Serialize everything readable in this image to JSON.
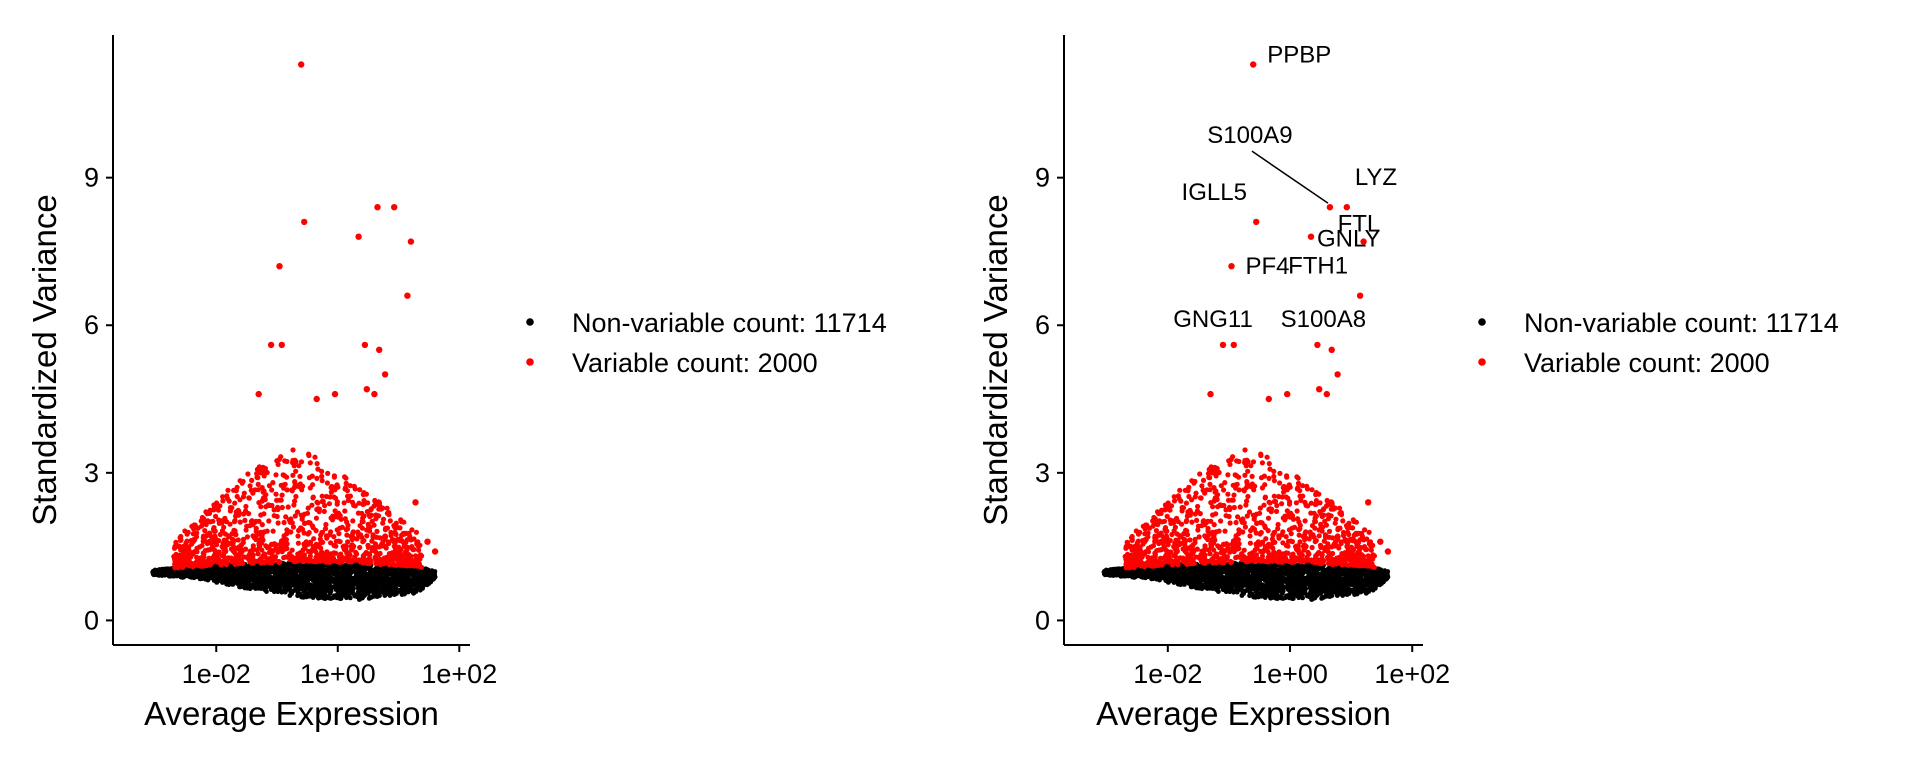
{
  "colors": {
    "variable": "#ff0000",
    "non_variable": "#000000",
    "axis": "#000000",
    "background": "#ffffff"
  },
  "chart_data": [
    {
      "type": "scatter",
      "title": "",
      "xlabel": "Average Expression",
      "ylabel": "Standardized Variance",
      "xscale": "log10",
      "xlim": [
        0.0002,
        150
      ],
      "ylim": [
        -0.5,
        11.9
      ],
      "xticks": [
        0.01,
        1,
        100
      ],
      "xtick_labels": [
        "1e-02",
        "1e+00",
        "1e+02"
      ],
      "yticks": [
        0,
        3,
        6,
        9
      ],
      "ytick_labels": [
        "0",
        "3",
        "6",
        "9"
      ],
      "grid": false,
      "legend_position": "right",
      "series": [
        {
          "name": "Non-variable count: 11714",
          "color": "#000000",
          "count": 11714,
          "points_shown_as_band": true,
          "band_upper": [
            [
              0.0005,
              1.0
            ],
            [
              0.005,
              1.1
            ],
            [
              0.03,
              1.15
            ],
            [
              0.3,
              1.2
            ],
            [
              3,
              1.15
            ],
            [
              20,
              1.1
            ],
            [
              40,
              1.0
            ]
          ],
          "band_lower": [
            [
              0.0005,
              0.95
            ],
            [
              0.005,
              0.85
            ],
            [
              0.03,
              0.65
            ],
            [
              0.3,
              0.45
            ],
            [
              3,
              0.42
            ],
            [
              20,
              0.55
            ],
            [
              40,
              0.85
            ]
          ]
        },
        {
          "name": "Variable count: 2000",
          "color": "#ff0000",
          "count": 2000,
          "notable_points": [
            {
              "x": 0.25,
              "y": 11.3
            },
            {
              "x": 0.28,
              "y": 8.1
            },
            {
              "x": 4.5,
              "y": 8.4
            },
            {
              "x": 8.5,
              "y": 8.4
            },
            {
              "x": 2.2,
              "y": 7.8
            },
            {
              "x": 16,
              "y": 7.7
            },
            {
              "x": 0.11,
              "y": 7.2
            },
            {
              "x": 14,
              "y": 6.6
            },
            {
              "x": 0.08,
              "y": 5.6
            },
            {
              "x": 0.12,
              "y": 5.6
            },
            {
              "x": 2.8,
              "y": 5.6
            },
            {
              "x": 4.8,
              "y": 5.5
            },
            {
              "x": 6.0,
              "y": 5.0
            },
            {
              "x": 0.9,
              "y": 4.6
            },
            {
              "x": 3.0,
              "y": 4.7
            },
            {
              "x": 4.0,
              "y": 4.6
            },
            {
              "x": 0.45,
              "y": 4.5
            },
            {
              "x": 0.05,
              "y": 4.6
            },
            {
              "x": 19,
              "y": 2.4
            },
            {
              "x": 30,
              "y": 1.6
            },
            {
              "x": 40,
              "y": 1.4
            }
          ],
          "cloud_region": {
            "x_range": [
              0.002,
              25
            ],
            "y_center_at_x": [
              [
                0.002,
                1.4
              ],
              [
                0.02,
                1.8
              ],
              [
                0.2,
                2.0
              ],
              [
                2,
                1.7
              ],
              [
                20,
                1.4
              ]
            ],
            "y_max_at_x": [
              [
                0.002,
                1.6
              ],
              [
                0.02,
                2.8
              ],
              [
                0.2,
                3.6
              ],
              [
                2,
                2.8
              ],
              [
                20,
                1.8
              ]
            ]
          }
        }
      ],
      "annotations": []
    },
    {
      "type": "scatter",
      "title": "",
      "xlabel": "Average Expression",
      "ylabel": "Standardized Variance",
      "xscale": "log10",
      "xlim": [
        0.0002,
        150
      ],
      "ylim": [
        -0.5,
        11.9
      ],
      "xticks": [
        0.01,
        1,
        100
      ],
      "xtick_labels": [
        "1e-02",
        "1e+00",
        "1e+02"
      ],
      "yticks": [
        0,
        3,
        6,
        9
      ],
      "ytick_labels": [
        "0",
        "3",
        "6",
        "9"
      ],
      "grid": false,
      "legend_position": "right",
      "series": [
        {
          "name": "Non-variable count: 11714",
          "color": "#000000",
          "count": 11714
        },
        {
          "name": "Variable count: 2000",
          "color": "#ff0000",
          "count": 2000
        }
      ],
      "annotations": [
        {
          "text": "PPBP",
          "x": 0.25,
          "y": 11.3
        },
        {
          "text": "S100A9",
          "x": 4.5,
          "y": 8.4
        },
        {
          "text": "LYZ",
          "x": 8.5,
          "y": 8.4
        },
        {
          "text": "IGLL5",
          "x": 0.28,
          "y": 8.1
        },
        {
          "text": "GNLY",
          "x": 2.2,
          "y": 7.8
        },
        {
          "text": "FTL",
          "x": 16,
          "y": 7.7
        },
        {
          "text": "PF4",
          "x": 0.11,
          "y": 7.2
        },
        {
          "text": "FTH1",
          "x": 14,
          "y": 6.6
        },
        {
          "text": "GNG11",
          "x": 0.08,
          "y": 5.6
        },
        {
          "text": "S100A8",
          "x": 2.8,
          "y": 5.6
        }
      ]
    }
  ]
}
